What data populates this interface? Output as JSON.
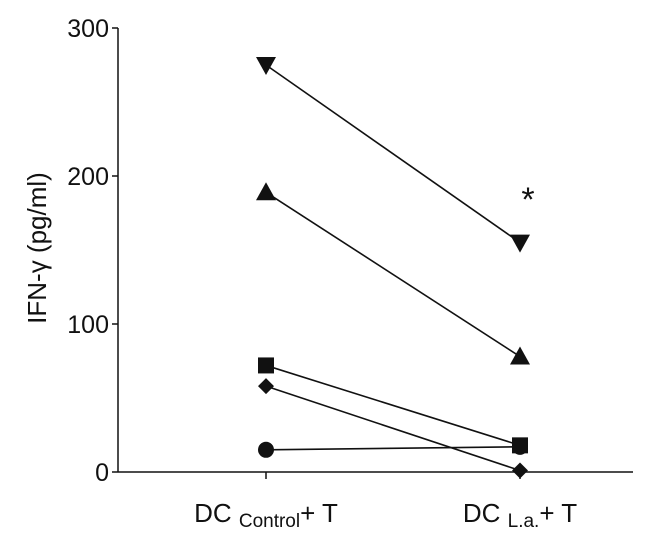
{
  "chart_data": {
    "type": "line",
    "ylabel": "IFN-γ (pg/ml)",
    "ylim": [
      0,
      300
    ],
    "yticks": [
      "0",
      "100",
      "200",
      "300"
    ],
    "categories": [
      {
        "main": "DC ",
        "sub": "Control",
        "tail": "+ T"
      },
      {
        "main": "DC ",
        "sub": "L.a.",
        "tail": "+ T"
      }
    ],
    "series": [
      {
        "marker": "triangle-down",
        "values": [
          275,
          155
        ]
      },
      {
        "marker": "triangle-up",
        "values": [
          189,
          78
        ]
      },
      {
        "marker": "square",
        "values": [
          72,
          18
        ]
      },
      {
        "marker": "diamond",
        "values": [
          58,
          1
        ]
      },
      {
        "marker": "circle",
        "values": [
          15,
          17
        ]
      }
    ],
    "annotations": [
      {
        "text": "*",
        "category": 1,
        "value": 188
      }
    ],
    "grid": false,
    "legend": "none"
  }
}
